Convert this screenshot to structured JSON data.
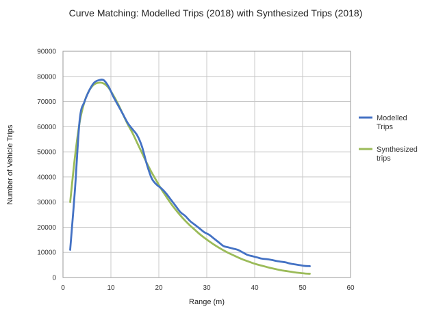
{
  "chart_data": {
    "type": "line",
    "title": "Curve Matching: Modelled Trips (2018) with Synthesized Trips (2018)",
    "xlabel": "Range (m)",
    "ylabel": "Number of Vehicle Trips",
    "xlim": [
      0,
      60
    ],
    "ylim": [
      0,
      90000
    ],
    "x_ticks": [
      0,
      10,
      20,
      30,
      40,
      50,
      60
    ],
    "y_ticks": [
      0,
      10000,
      20000,
      30000,
      40000,
      50000,
      60000,
      70000,
      80000,
      90000
    ],
    "x_tick_labels": [
      "0",
      "10",
      "20",
      "30",
      "40",
      "50",
      "60"
    ],
    "y_tick_labels": [
      "0",
      "10000",
      "20000",
      "30000",
      "40000",
      "50000",
      "60000",
      "70000",
      "80000",
      "90000"
    ],
    "grid": true,
    "legend_position": "right",
    "series": [
      {
        "name": "Modelled Trips",
        "color": "#4472C4",
        "points": [
          [
            1.5,
            11000
          ],
          [
            2.5,
            35000
          ],
          [
            3.5,
            63000
          ],
          [
            4.5,
            70000
          ],
          [
            5.5,
            74500
          ],
          [
            6.5,
            77500
          ],
          [
            7.5,
            78500
          ],
          [
            8.5,
            78500
          ],
          [
            9.5,
            76000
          ],
          [
            10.5,
            72000
          ],
          [
            11.5,
            68500
          ],
          [
            12.5,
            65000
          ],
          [
            13.5,
            61500
          ],
          [
            14.5,
            59000
          ],
          [
            15.5,
            56500
          ],
          [
            16.5,
            52000
          ],
          [
            17.5,
            45000
          ],
          [
            18.5,
            39500
          ],
          [
            19.5,
            37000
          ],
          [
            20.5,
            35500
          ],
          [
            21.5,
            33500
          ],
          [
            22.5,
            31000
          ],
          [
            23.5,
            28500
          ],
          [
            24.5,
            26000
          ],
          [
            25.5,
            24500
          ],
          [
            26.5,
            22500
          ],
          [
            27.5,
            21000
          ],
          [
            28.5,
            19500
          ],
          [
            29.5,
            18000
          ],
          [
            30.5,
            17000
          ],
          [
            31.5,
            15500
          ],
          [
            32.5,
            14000
          ],
          [
            33.5,
            12500
          ],
          [
            34.5,
            12000
          ],
          [
            35.5,
            11500
          ],
          [
            36.5,
            11000
          ],
          [
            37.5,
            10000
          ],
          [
            38.5,
            9000
          ],
          [
            39.5,
            8500
          ],
          [
            40.5,
            8000
          ],
          [
            41.5,
            7500
          ],
          [
            42.5,
            7300
          ],
          [
            43.5,
            7000
          ],
          [
            44.5,
            6600
          ],
          [
            45.5,
            6300
          ],
          [
            46.5,
            6000
          ],
          [
            47.5,
            5500
          ],
          [
            48.5,
            5200
          ],
          [
            49.5,
            4900
          ],
          [
            50.5,
            4600
          ],
          [
            51.5,
            4500
          ]
        ]
      },
      {
        "name": "Synthesized trips",
        "color": "#9BBB59",
        "points": [
          [
            1.5,
            30000
          ],
          [
            2.5,
            48000
          ],
          [
            3.5,
            62000
          ],
          [
            4.5,
            70000
          ],
          [
            5.5,
            74500
          ],
          [
            6.5,
            76800
          ],
          [
            7.5,
            77500
          ],
          [
            8.5,
            77200
          ],
          [
            9.5,
            75500
          ],
          [
            10.5,
            72500
          ],
          [
            11.5,
            69000
          ],
          [
            12.5,
            65000
          ],
          [
            13.5,
            61000
          ],
          [
            14.5,
            57500
          ],
          [
            15.5,
            53500
          ],
          [
            16.5,
            49500
          ],
          [
            17.5,
            45500
          ],
          [
            18.5,
            41800
          ],
          [
            19.5,
            38500
          ],
          [
            20.5,
            35200
          ],
          [
            21.5,
            32300
          ],
          [
            22.5,
            29500
          ],
          [
            23.5,
            27000
          ],
          [
            24.5,
            24700
          ],
          [
            25.5,
            22600
          ],
          [
            26.5,
            20700
          ],
          [
            27.5,
            19000
          ],
          [
            28.5,
            17300
          ],
          [
            29.5,
            15800
          ],
          [
            30.5,
            14400
          ],
          [
            31.5,
            13100
          ],
          [
            32.5,
            11900
          ],
          [
            33.5,
            10800
          ],
          [
            34.5,
            9800
          ],
          [
            35.5,
            8900
          ],
          [
            36.5,
            8000
          ],
          [
            37.5,
            7200
          ],
          [
            38.5,
            6500
          ],
          [
            39.5,
            5800
          ],
          [
            40.5,
            5200
          ],
          [
            41.5,
            4700
          ],
          [
            42.5,
            4200
          ],
          [
            43.5,
            3700
          ],
          [
            44.5,
            3300
          ],
          [
            45.5,
            2900
          ],
          [
            46.5,
            2600
          ],
          [
            47.5,
            2300
          ],
          [
            48.5,
            2000
          ],
          [
            49.5,
            1800
          ],
          [
            50.5,
            1600
          ],
          [
            51.5,
            1500
          ]
        ]
      }
    ],
    "legend": [
      {
        "lines": [
          "Modelled",
          "Trips"
        ],
        "color": "#4472C4"
      },
      {
        "lines": [
          "Synthesized",
          "trips"
        ],
        "color": "#9BBB59"
      }
    ]
  }
}
